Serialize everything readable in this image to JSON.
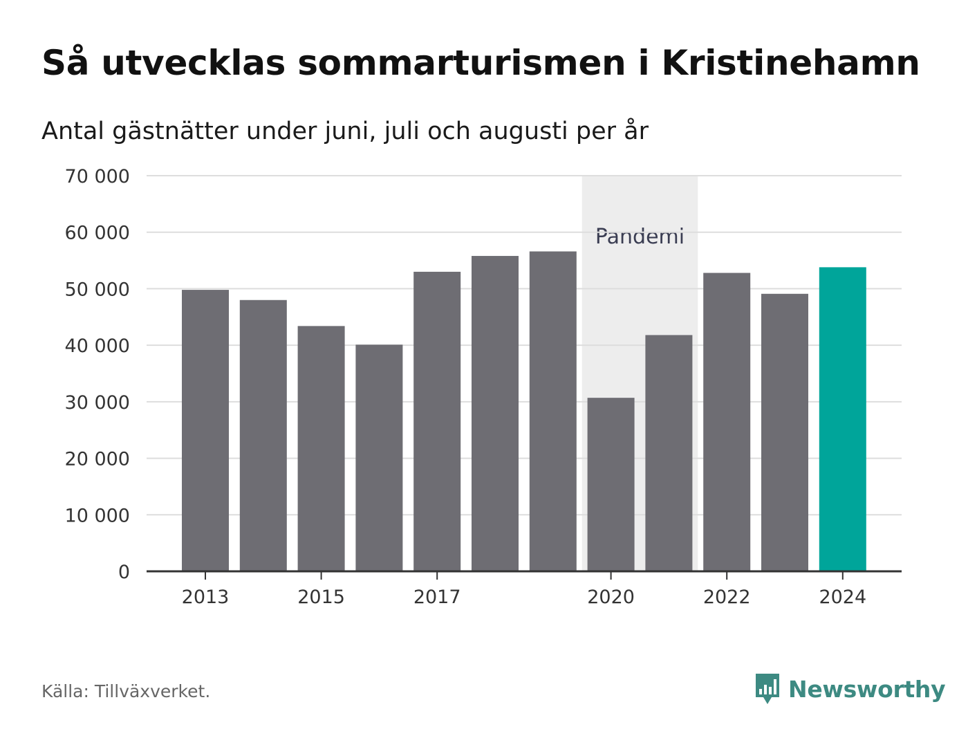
{
  "header": {
    "title": "Så utvecklas sommarturismen i Kristinehamn",
    "subtitle": "Antal gästnätter under juni, juli och augusti per år"
  },
  "chart_data": {
    "type": "bar",
    "categories": [
      "2013",
      "2014",
      "2015",
      "2016",
      "2017",
      "2018",
      "2019",
      "2020",
      "2021",
      "2022",
      "2023",
      "2024"
    ],
    "x_tick_labels": [
      "2013",
      "2015",
      "2017",
      "2020",
      "2022",
      "2024"
    ],
    "values": [
      49800,
      48000,
      43400,
      40100,
      53000,
      55800,
      56600,
      30700,
      41800,
      52800,
      49100,
      53800
    ],
    "ylim": [
      0,
      70000
    ],
    "y_ticks": [
      0,
      10000,
      20000,
      30000,
      40000,
      50000,
      60000,
      70000
    ],
    "y_tick_labels": [
      "0",
      "10 000",
      "20 000",
      "30 000",
      "40 000",
      "50 000",
      "60 000",
      "70 000"
    ],
    "grid": true,
    "highlight_category": "2024",
    "colors": {
      "bar": "#6e6d73",
      "highlight": "#00a59a",
      "grid": "#dddddd",
      "axis": "#333333",
      "band": "#ededed"
    },
    "annotation_band": {
      "label": "Pandemi",
      "from_category": "2020",
      "to_category": "2021"
    }
  },
  "footer": {
    "source": "Källa: Tillväxverket.",
    "brand": "Newsworthy",
    "brand_icon": "newsworthy-logo-icon",
    "brand_color": "#3d8a82"
  }
}
